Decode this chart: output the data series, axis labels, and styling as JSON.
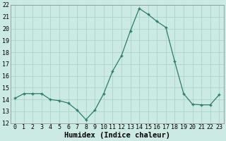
{
  "x": [
    0,
    1,
    2,
    3,
    4,
    5,
    6,
    7,
    8,
    9,
    10,
    11,
    12,
    13,
    14,
    15,
    16,
    17,
    18,
    19,
    20,
    21,
    22,
    23
  ],
  "y": [
    14.1,
    14.5,
    14.5,
    14.5,
    14.0,
    13.9,
    13.7,
    13.1,
    12.3,
    13.1,
    14.5,
    16.4,
    17.7,
    19.8,
    21.7,
    21.2,
    20.6,
    20.1,
    17.2,
    14.5,
    13.6,
    13.55,
    13.55,
    14.4
  ],
  "xlabel": "Humidex (Indice chaleur)",
  "ylim": [
    12,
    22
  ],
  "xlim": [
    -0.5,
    23.5
  ],
  "yticks": [
    12,
    13,
    14,
    15,
    16,
    17,
    18,
    19,
    20,
    21,
    22
  ],
  "xticks": [
    0,
    1,
    2,
    3,
    4,
    5,
    6,
    7,
    8,
    9,
    10,
    11,
    12,
    13,
    14,
    15,
    16,
    17,
    18,
    19,
    20,
    21,
    22,
    23
  ],
  "line_color": "#2d7a6e",
  "marker_color": "#2d7a6e",
  "bg_color": "#cceae4",
  "grid_color": "#aad4cc",
  "xlabel_fontsize": 7.5,
  "tick_fontsize": 6.0
}
